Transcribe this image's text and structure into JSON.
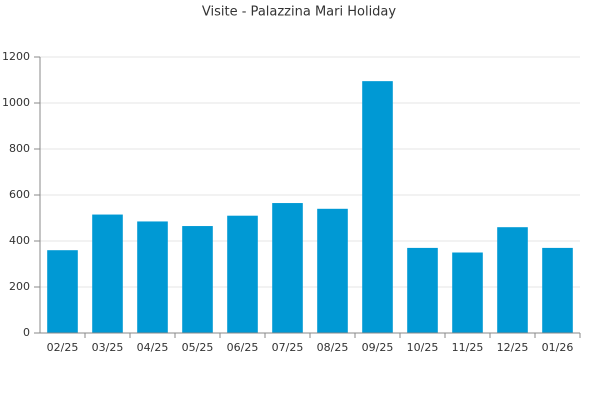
{
  "chart_data": {
    "type": "bar",
    "title": "Visite - Palazzina Mari Holiday",
    "categories": [
      "02/25",
      "03/25",
      "04/25",
      "05/25",
      "06/25",
      "07/25",
      "08/25",
      "09/25",
      "10/25",
      "11/25",
      "12/25",
      "01/26"
    ],
    "values": [
      360,
      515,
      485,
      465,
      510,
      565,
      540,
      1095,
      370,
      350,
      460,
      370
    ],
    "color": "#0099d4",
    "ylim": [
      0,
      1200
    ],
    "yticks": [
      0,
      200,
      400,
      600,
      800,
      1000,
      1200
    ],
    "grid": true
  }
}
